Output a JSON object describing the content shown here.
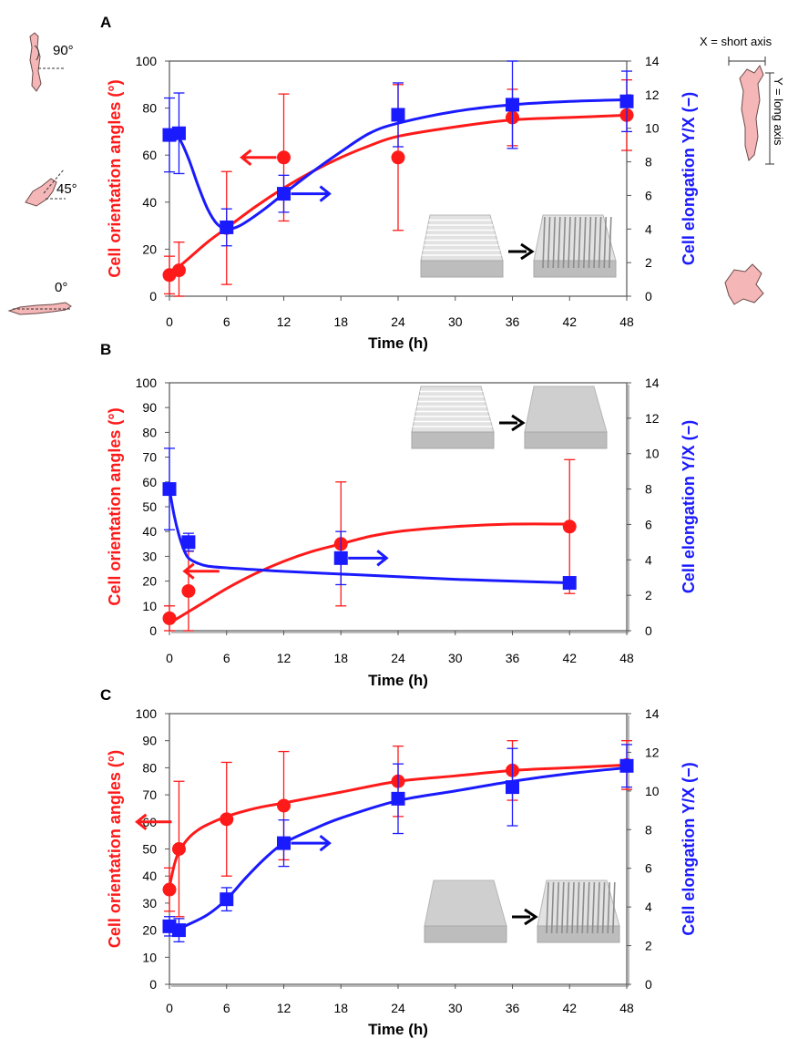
{
  "figure": {
    "side_labels": {
      "angle_90": "90°",
      "angle_45": "45°",
      "angle_0": "0°",
      "x_def": "X = short axis",
      "y_def": "Y = long axis"
    },
    "colors": {
      "orientation": "#ff1a1a",
      "elongation": "#1a1aff",
      "cell_fill": "#f4b6b6",
      "cell_stroke": "#6b4a4a"
    },
    "icons": [
      "cell-vertical-icon",
      "cell-diagonal-icon",
      "cell-horizontal-icon",
      "cell-elongated-icon",
      "cell-round-icon",
      "substrate-grooved-icon",
      "substrate-flat-icon",
      "substrate-pillars-icon",
      "arrow-right-icon"
    ]
  },
  "chart_data": [
    {
      "type": "line",
      "panel_label": "A",
      "xlabel": "Time (h)",
      "ylabel_left": "Cell orientation angles (°)",
      "ylabel_right": "Cell elongation Y/X (−)",
      "xlim": [
        0,
        48
      ],
      "xticks": [
        0,
        6,
        12,
        18,
        24,
        30,
        36,
        42,
        48
      ],
      "ylim_left": [
        0,
        100
      ],
      "yticks_left": [
        0,
        20,
        40,
        60,
        80,
        100
      ],
      "ylim_right": [
        0,
        14
      ],
      "yticks_right": [
        0,
        2,
        4,
        6,
        8,
        10,
        12,
        14
      ],
      "grid": false,
      "inset": "grooved-to-pillars",
      "series": [
        {
          "axis": "left",
          "marker": "circle",
          "color": "#ff1a1a",
          "x": [
            0,
            1,
            6,
            12,
            24,
            36,
            48
          ],
          "y": [
            9,
            11,
            29,
            59,
            59,
            76,
            77
          ],
          "err": [
            8,
            12,
            24,
            27,
            31,
            12,
            15
          ],
          "fit_x": [
            0,
            2,
            4,
            6,
            9,
            12,
            15,
            18,
            21,
            24,
            30,
            36,
            42,
            48
          ],
          "fit_y": [
            9,
            16,
            23,
            29,
            38,
            46,
            53,
            59,
            64,
            68,
            72,
            75,
            76,
            77
          ]
        },
        {
          "axis": "right",
          "marker": "square",
          "color": "#1a1aff",
          "x": [
            0,
            1,
            6,
            12,
            24,
            36,
            48
          ],
          "y": [
            9.6,
            9.7,
            4.1,
            6.1,
            10.8,
            11.4,
            11.6
          ],
          "err": [
            2.2,
            2.4,
            1.1,
            1.1,
            1.9,
            2.6,
            1.8
          ],
          "fit_x": [
            0,
            1,
            2,
            3,
            4,
            5,
            6,
            7,
            8,
            10,
            12,
            15,
            18,
            21,
            24,
            30,
            36,
            42,
            48
          ],
          "fit_y": [
            9.6,
            9.4,
            8.2,
            6.6,
            5.2,
            4.3,
            4.0,
            4.1,
            4.4,
            5.2,
            6.1,
            7.4,
            8.6,
            9.7,
            10.3,
            11.0,
            11.4,
            11.6,
            11.7
          ]
        }
      ],
      "annotations": [
        {
          "kind": "arrow-left",
          "series": 0,
          "x": 12,
          "y": 59
        },
        {
          "kind": "arrow-right",
          "series": 1,
          "x": 12,
          "y": 6.1
        }
      ]
    },
    {
      "type": "line",
      "panel_label": "B",
      "xlabel": "Time (h)",
      "ylabel_left": "Cell orientation angles (°)",
      "ylabel_right": "Cell elongation Y/X (−)",
      "xlim": [
        0,
        48
      ],
      "xticks": [
        0,
        6,
        12,
        18,
        24,
        30,
        36,
        42,
        48
      ],
      "ylim_left": [
        0,
        100
      ],
      "yticks_left": [
        0,
        10,
        20,
        30,
        40,
        50,
        60,
        70,
        80,
        90,
        100
      ],
      "ylim_right": [
        0,
        14
      ],
      "yticks_right": [
        0,
        2,
        4,
        6,
        8,
        10,
        12,
        14
      ],
      "grid": false,
      "inset": "grooved-to-flat",
      "series": [
        {
          "axis": "left",
          "marker": "circle",
          "color": "#ff1a1a",
          "x": [
            0,
            2,
            18,
            42
          ],
          "y": [
            5,
            16,
            35,
            42
          ],
          "err": [
            5,
            16,
            25,
            27
          ],
          "fit_x": [
            0,
            3,
            6,
            9,
            12,
            15,
            18,
            21,
            24,
            30,
            36,
            42
          ],
          "fit_y": [
            3,
            10,
            17,
            23,
            28,
            32,
            35,
            38,
            40,
            42,
            43,
            43
          ]
        },
        {
          "axis": "right",
          "marker": "square",
          "color": "#1a1aff",
          "x": [
            0,
            2,
            18,
            42
          ],
          "y": [
            8.0,
            5.0,
            4.1,
            2.7
          ],
          "err": [
            2.3,
            0.5,
            1.5,
            0.3
          ],
          "fit_x": [
            0,
            0.5,
            1,
            1.5,
            2,
            3,
            4,
            6,
            9,
            12,
            18,
            24,
            30,
            36,
            42
          ],
          "fit_y": [
            8.0,
            6.5,
            5.4,
            4.6,
            4.1,
            3.8,
            3.65,
            3.55,
            3.45,
            3.35,
            3.2,
            3.05,
            2.9,
            2.8,
            2.7
          ]
        }
      ],
      "annotations": [
        {
          "kind": "arrow-left",
          "series": 0,
          "x": 6,
          "y": 24
        },
        {
          "kind": "arrow-right",
          "series": 1,
          "x": 18,
          "y": 4.1
        }
      ]
    },
    {
      "type": "line",
      "panel_label": "C",
      "xlabel": "Time (h)",
      "ylabel_left": "Cell orientation angles (°)",
      "ylabel_right": "Cell elongation Y/X (−)",
      "xlim": [
        0,
        48
      ],
      "xticks": [
        0,
        6,
        12,
        18,
        24,
        30,
        36,
        42,
        48
      ],
      "ylim_left": [
        0,
        100
      ],
      "yticks_left": [
        0,
        10,
        20,
        30,
        40,
        50,
        60,
        70,
        80,
        90,
        100
      ],
      "ylim_right": [
        0,
        14
      ],
      "yticks_right": [
        0,
        2,
        4,
        6,
        8,
        10,
        12,
        14
      ],
      "grid": false,
      "inset": "flat-to-pillars",
      "series": [
        {
          "axis": "left",
          "marker": "circle",
          "color": "#ff1a1a",
          "x": [
            0,
            1,
            6,
            12,
            24,
            36,
            48
          ],
          "y": [
            35,
            50,
            61,
            66,
            75,
            79,
            81
          ],
          "err": [
            8,
            25,
            21,
            20,
            13,
            11,
            9
          ],
          "fit_x": [
            0,
            0.5,
            1,
            2,
            3,
            4,
            6,
            9,
            12,
            18,
            24,
            30,
            36,
            42,
            48
          ],
          "fit_y": [
            36,
            44,
            49,
            54,
            57,
            59,
            62,
            65,
            67,
            71,
            75,
            77,
            79,
            80,
            81
          ]
        },
        {
          "axis": "right",
          "marker": "square",
          "color": "#1a1aff",
          "x": [
            0,
            1,
            6,
            12,
            24,
            36,
            48
          ],
          "y": [
            3.0,
            2.8,
            4.4,
            7.3,
            9.6,
            10.2,
            11.3
          ],
          "err": [
            0.5,
            0.6,
            0.6,
            1.2,
            1.8,
            2.0,
            1.1
          ],
          "fit_x": [
            0,
            1,
            2,
            4,
            6,
            8,
            10,
            12,
            15,
            18,
            24,
            30,
            36,
            42,
            48
          ],
          "fit_y": [
            3.0,
            2.9,
            3.1,
            3.6,
            4.4,
            5.5,
            6.5,
            7.3,
            8.0,
            8.6,
            9.5,
            10.0,
            10.5,
            10.9,
            11.2
          ]
        }
      ],
      "annotations": [
        {
          "kind": "arrow-left",
          "series": 0,
          "x": 1,
          "y": 60
        },
        {
          "kind": "arrow-right",
          "series": 1,
          "x": 12,
          "y": 7.3
        }
      ]
    }
  ]
}
